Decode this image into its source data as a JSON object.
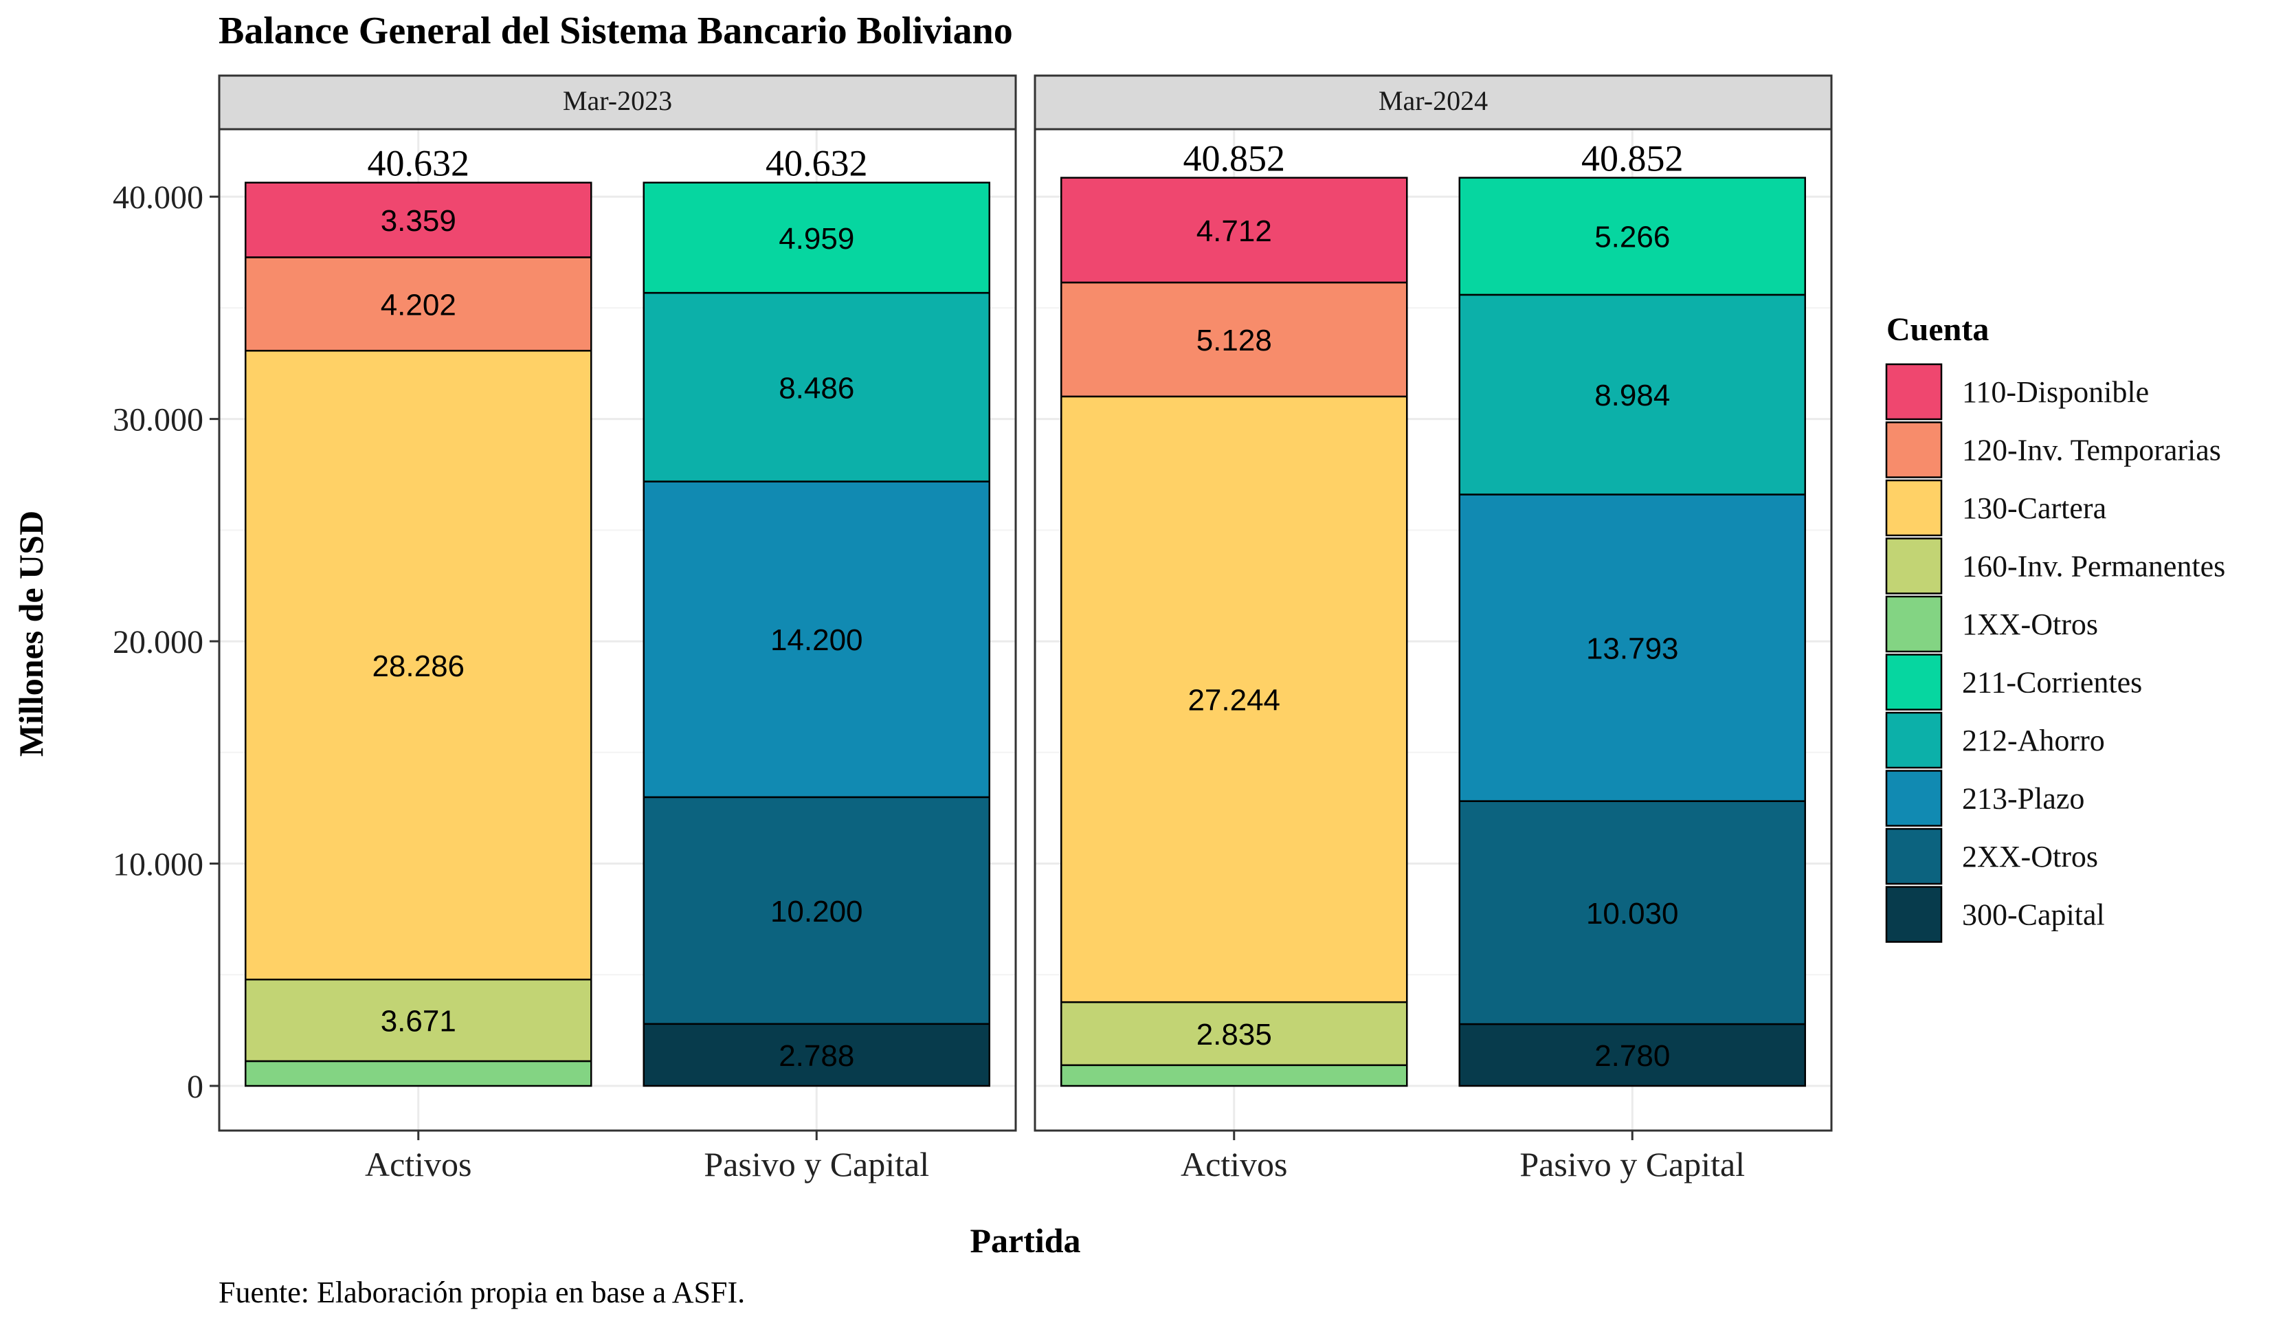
{
  "chart_data": {
    "type": "bar",
    "stacked": true,
    "faceted": true,
    "title": "Balance General del Sistema Bancario Boliviano",
    "xlabel": "Partida",
    "ylabel": "Millones de USD",
    "caption": "Fuente: Elaboración propia en base a ASFI.",
    "ylim": [
      0,
      43000
    ],
    "y_ticks": [
      0,
      10000,
      20000,
      30000,
      40000
    ],
    "y_tick_labels": [
      "0",
      "10.000",
      "20.000",
      "30.000",
      "40.000"
    ],
    "grid": true,
    "legend": {
      "title": "Cuenta",
      "placement": "right",
      "items": [
        {
          "name": "110-Disponible",
          "color": "#EF476F"
        },
        {
          "name": "120-Inv. Temporarias",
          "color": "#F78C6B"
        },
        {
          "name": "130-Cartera",
          "color": "#FFD166"
        },
        {
          "name": "160-Inv. Permanentes",
          "color": "#C2D474"
        },
        {
          "name": "1XX-Otros",
          "color": "#83D483"
        },
        {
          "name": "211-Corrientes",
          "color": "#06D6A0"
        },
        {
          "name": "212-Ahorro",
          "color": "#0CB0A9"
        },
        {
          "name": "213-Plazo",
          "color": "#118AB2"
        },
        {
          "name": "2XX-Otros",
          "color": "#0C637F"
        },
        {
          "name": "300-Capital",
          "color": "#073B4C"
        }
      ]
    },
    "categories": [
      "Activos",
      "Pasivo y Capital"
    ],
    "facets": [
      {
        "label": "Mar-2023",
        "bars": [
          {
            "category": "Activos",
            "total": 40632,
            "total_label": "40.632",
            "segments": [
              {
                "account": "1XX-Otros",
                "value": 1114,
                "label": ""
              },
              {
                "account": "160-Inv. Permanentes",
                "value": 3671,
                "label": "3.671"
              },
              {
                "account": "130-Cartera",
                "value": 28286,
                "label": "28.286"
              },
              {
                "account": "120-Inv. Temporarias",
                "value": 4202,
                "label": "4.202"
              },
              {
                "account": "110-Disponible",
                "value": 3359,
                "label": "3.359"
              }
            ]
          },
          {
            "category": "Pasivo y Capital",
            "total": 40632,
            "total_label": "40.632",
            "segments": [
              {
                "account": "300-Capital",
                "value": 2788,
                "label": "2.788"
              },
              {
                "account": "2XX-Otros",
                "value": 10200,
                "label": "10.200"
              },
              {
                "account": "213-Plazo",
                "value": 14200,
                "label": "14.200"
              },
              {
                "account": "212-Ahorro",
                "value": 8486,
                "label": "8.486"
              },
              {
                "account": "211-Corrientes",
                "value": 4959,
                "label": "4.959"
              }
            ]
          }
        ]
      },
      {
        "label": "Mar-2024",
        "bars": [
          {
            "category": "Activos",
            "total": 40852,
            "total_label": "40.852",
            "segments": [
              {
                "account": "1XX-Otros",
                "value": 933,
                "label": ""
              },
              {
                "account": "160-Inv. Permanentes",
                "value": 2835,
                "label": "2.835"
              },
              {
                "account": "130-Cartera",
                "value": 27244,
                "label": "27.244"
              },
              {
                "account": "120-Inv. Temporarias",
                "value": 5128,
                "label": "5.128"
              },
              {
                "account": "110-Disponible",
                "value": 4712,
                "label": "4.712"
              }
            ]
          },
          {
            "category": "Pasivo y Capital",
            "total": 40852,
            "total_label": "40.852",
            "segments": [
              {
                "account": "300-Capital",
                "value": 2780,
                "label": "2.780"
              },
              {
                "account": "2XX-Otros",
                "value": 10030,
                "label": "10.030"
              },
              {
                "account": "213-Plazo",
                "value": 13793,
                "label": "13.793"
              },
              {
                "account": "212-Ahorro",
                "value": 8984,
                "label": "8.984"
              },
              {
                "account": "211-Corrientes",
                "value": 5266,
                "label": "5.266"
              }
            ]
          }
        ]
      }
    ]
  }
}
